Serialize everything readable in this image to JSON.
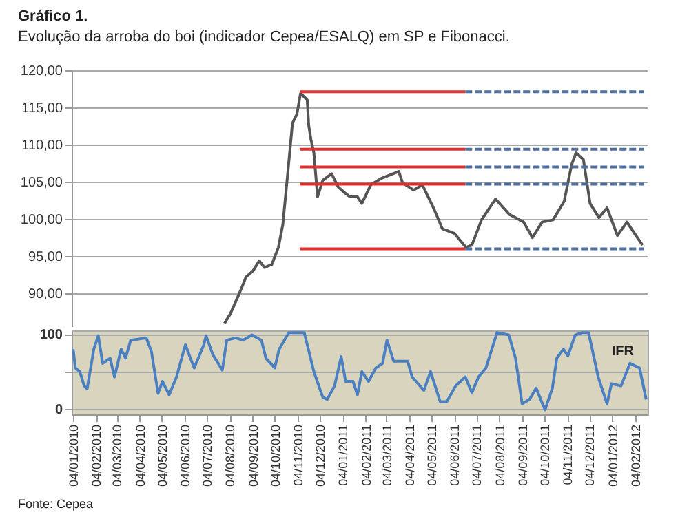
{
  "chart_data": [
    {
      "type": "line",
      "title": "Gráfico 1.",
      "subtitle": "Evolução da arroba do boi (indicador Cepea/ESALQ) em SP e Fibonacci.",
      "xlim": [
        "2010-01-02",
        "2012-02-21"
      ],
      "ylim": [
        85.6,
        120
      ],
      "yticks": [
        {
          "value": 90,
          "label": "90,00"
        },
        {
          "value": 95,
          "label": "95,00"
        },
        {
          "value": 100,
          "label": "100,00"
        },
        {
          "value": 105,
          "label": "105,00"
        },
        {
          "value": 110,
          "label": "110,00"
        },
        {
          "value": 115,
          "label": "115,00"
        },
        {
          "value": 120,
          "label": "120,00"
        }
      ],
      "grid": "y",
      "tick_labels": "y",
      "series": [
        {
          "color": "#555555",
          "x": [
            "2010-07-28",
            "2010-08-05",
            "2010-08-17",
            "2010-08-26",
            "2010-09-05",
            "2010-09-13",
            "2010-09-20",
            "2010-09-30",
            "2010-10-09",
            "2010-10-15",
            "2010-10-21",
            "2010-10-28",
            "2010-11-03",
            "2010-11-08",
            "2010-11-17",
            "2010-11-19",
            "2010-11-22",
            "2010-11-26",
            "2010-12-01",
            "2010-12-08",
            "2010-12-20",
            "2010-12-29",
            "2011-01-06",
            "2011-01-14",
            "2011-01-24",
            "2011-01-30",
            "2011-02-11",
            "2011-02-26",
            "2011-03-21",
            "2011-03-26",
            "2011-04-10",
            "2011-04-22",
            "2011-05-07",
            "2011-05-19",
            "2011-06-04",
            "2011-06-20",
            "2011-06-28",
            "2011-07-11",
            "2011-07-30",
            "2011-08-18",
            "2011-09-06",
            "2011-09-18",
            "2011-10-01",
            "2011-10-16",
            "2011-10-31",
            "2011-11-10",
            "2011-11-16",
            "2011-11-26",
            "2011-12-05",
            "2011-12-17",
            "2011-12-28",
            "2012-01-11",
            "2012-01-24",
            "2012-02-01",
            "2012-02-14"
          ],
          "values": [
            86.0,
            87.3,
            90.0,
            92.2,
            93.1,
            94.4,
            93.5,
            93.9,
            96.2,
            99.3,
            105.5,
            112.9,
            114.1,
            116.9,
            116.0,
            112.6,
            110.7,
            108.9,
            103.0,
            105.2,
            106.1,
            104.3,
            103.6,
            103.0,
            103.0,
            102.1,
            104.6,
            105.5,
            106.4,
            104.9,
            103.9,
            104.6,
            101.5,
            98.7,
            98.1,
            96.2,
            96.5,
            99.9,
            102.7,
            100.6,
            99.6,
            97.5,
            99.6,
            99.9,
            102.4,
            107.3,
            108.9,
            108.0,
            102.1,
            100.2,
            101.5,
            97.8,
            99.6,
            98.4,
            96.5
          ]
        },
        {
          "color": "#e03030",
          "x": [
            "2010-11-07",
            "2011-06-19"
          ],
          "values": [
            117.1,
            117.1
          ]
        },
        {
          "color": "#4f6f9f",
          "line_style": "dashed",
          "x": [
            "2011-06-19",
            "2012-02-16"
          ],
          "values": [
            117.1,
            117.1
          ]
        },
        {
          "color": "#e03030",
          "x": [
            "2010-11-07",
            "2011-06-19"
          ],
          "values": [
            109.4,
            109.4
          ]
        },
        {
          "color": "#4f6f9f",
          "line_style": "dashed",
          "x": [
            "2011-06-19",
            "2012-02-16"
          ],
          "values": [
            109.4,
            109.4
          ]
        },
        {
          "color": "#e03030",
          "x": [
            "2010-11-07",
            "2011-06-19"
          ],
          "values": [
            107.0,
            107.0
          ]
        },
        {
          "color": "#4f6f9f",
          "line_style": "dashed",
          "x": [
            "2011-06-19",
            "2012-02-16"
          ],
          "values": [
            107.0,
            107.0
          ]
        },
        {
          "color": "#e03030",
          "x": [
            "2010-11-07",
            "2011-06-19"
          ],
          "values": [
            104.7,
            104.7
          ]
        },
        {
          "color": "#4f6f9f",
          "line_style": "dashed",
          "x": [
            "2011-06-19",
            "2012-02-16"
          ],
          "values": [
            104.7,
            104.7
          ]
        },
        {
          "color": "#e03030",
          "x": [
            "2010-11-07",
            "2011-06-19"
          ],
          "values": [
            96.0,
            96.0
          ]
        },
        {
          "color": "#4f6f9f",
          "line_style": "dashed",
          "x": [
            "2011-06-19",
            "2012-02-16"
          ],
          "values": [
            96.0,
            96.0
          ]
        }
      ]
    },
    {
      "type": "line",
      "annotations": [
        "Fonte: Cepea"
      ],
      "xlim": [
        "2010-01-02",
        "2012-02-21"
      ],
      "ylim": [
        -7,
        105
      ],
      "yticks": [
        0,
        {
          "value": 50,
          "label": null
        },
        100
      ],
      "xticks": [
        {
          "value": "2010-01-04",
          "label": "04/01/2010"
        },
        {
          "value": "2010-02-04",
          "label": "04/02/2010"
        },
        {
          "value": "2010-03-04",
          "label": "04/03/2010"
        },
        {
          "value": "2010-04-04",
          "label": "04/04/2010"
        },
        {
          "value": "2010-05-04",
          "label": "04/05/2010"
        },
        {
          "value": "2010-06-04",
          "label": "04/06/2010"
        },
        {
          "value": "2010-07-04",
          "label": "04/07/2010"
        },
        {
          "value": "2010-08-04",
          "label": "04/08/2010"
        },
        {
          "value": "2010-09-04",
          "label": "04/09/2010"
        },
        {
          "value": "2010-10-04",
          "label": "04/10/2010"
        },
        {
          "value": "2010-11-04",
          "label": "04/11/2010"
        },
        {
          "value": "2010-12-04",
          "label": "04/12/2010"
        },
        {
          "value": "2011-01-04",
          "label": "04/01/2011"
        },
        {
          "value": "2011-02-04",
          "label": "04/02/2011"
        },
        {
          "value": "2011-03-04",
          "label": "04/03/2011"
        },
        {
          "value": "2011-04-04",
          "label": "04/04/2011"
        },
        {
          "value": "2011-05-04",
          "label": "04/05/2011"
        },
        {
          "value": "2011-06-04",
          "label": "04/06/2011"
        },
        {
          "value": "2011-07-04",
          "label": "04/07/2011"
        },
        {
          "value": "2011-08-04",
          "label": "04/08/2011"
        },
        {
          "value": "2011-09-04",
          "label": "04/09/2011"
        },
        {
          "value": "2011-10-04",
          "label": "04/10/2011"
        },
        {
          "value": "2011-11-04",
          "label": "04/11/2011"
        },
        {
          "value": "2011-12-04",
          "label": "04/12/2011"
        },
        {
          "value": "2012-01-04",
          "label": "04/01/2012"
        },
        {
          "value": "2012-02-04",
          "label": "04/02/2012"
        }
      ],
      "grid": "y",
      "series": [
        {
          "name": "IFR",
          "color": "#4a7fc1",
          "x": [
            "2010-01-04",
            "2010-01-07",
            "2010-01-13",
            "2010-01-19",
            "2010-01-23",
            "2010-02-01",
            "2010-02-07",
            "2010-02-13",
            "2010-02-23",
            "2010-03-01",
            "2010-03-10",
            "2010-03-16",
            "2010-03-23",
            "2010-04-13",
            "2010-04-20",
            "2010-04-29",
            "2010-05-05",
            "2010-05-14",
            "2010-05-24",
            "2010-06-05",
            "2010-06-11",
            "2010-06-17",
            "2010-06-30",
            "2010-07-03",
            "2010-07-12",
            "2010-07-25",
            "2010-07-31",
            "2010-08-12",
            "2010-08-22",
            "2010-09-03",
            "2010-09-16",
            "2010-09-22",
            "2010-10-04",
            "2010-10-10",
            "2010-10-23",
            "2010-11-13",
            "2010-11-26",
            "2010-12-08",
            "2010-12-14",
            "2010-12-24",
            "2011-01-02",
            "2011-01-08",
            "2011-01-18",
            "2011-01-24",
            "2011-01-30",
            "2011-02-08",
            "2011-02-18",
            "2011-02-27",
            "2011-03-05",
            "2011-03-14",
            "2011-04-02",
            "2011-04-08",
            "2011-04-24",
            "2011-05-03",
            "2011-05-16",
            "2011-05-25",
            "2011-06-06",
            "2011-06-19",
            "2011-06-28",
            "2011-07-07",
            "2011-07-17",
            "2011-07-26",
            "2011-08-01",
            "2011-08-17",
            "2011-08-26",
            "2011-09-04",
            "2011-09-14",
            "2011-09-23",
            "2011-10-05",
            "2011-10-15",
            "2011-10-21",
            "2011-10-30",
            "2011-11-05",
            "2011-11-15",
            "2011-11-24",
            "2011-12-03",
            "2011-12-16",
            "2011-12-28",
            "2012-01-03",
            "2012-01-16",
            "2012-01-28",
            "2012-02-10",
            "2012-02-19"
          ],
          "values": [
            80,
            55,
            50,
            31,
            27,
            80,
            98,
            61,
            68,
            43,
            80,
            68,
            92,
            95,
            77,
            21,
            37,
            19,
            43,
            86,
            70,
            55,
            86,
            98,
            73,
            52,
            92,
            95,
            92,
            99,
            92,
            68,
            55,
            80,
            102,
            102,
            50,
            16,
            13,
            31,
            70,
            37,
            37,
            19,
            50,
            37,
            55,
            61,
            92,
            64,
            64,
            43,
            25,
            50,
            10,
            10,
            31,
            43,
            22,
            43,
            55,
            83,
            102,
            99,
            68,
            7,
            13,
            28,
            -1,
            28,
            68,
            80,
            71,
            99,
            102,
            102,
            43,
            7,
            34,
            31,
            61,
            55,
            13
          ]
        }
      ]
    }
  ]
}
